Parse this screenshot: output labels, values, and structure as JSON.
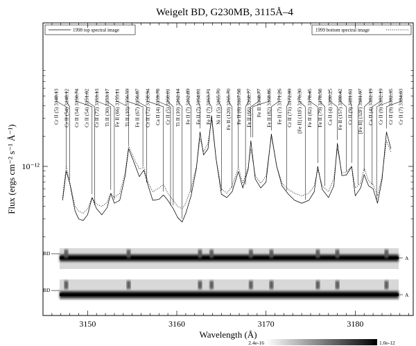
{
  "chart_data": {
    "type": "line",
    "title": "Weigelt BD, G230MB, 3115Å–4",
    "xlabel": "Wavelength (Å)",
    "ylabel": "Flux (ergs cm⁻² s⁻¹ Å⁻¹)",
    "xlim": [
      3145.0,
      3186.5
    ],
    "y_scale": "log",
    "y_tick": {
      "value": 1e-12,
      "label": "10⁻¹²"
    },
    "x_ticks": [
      3150,
      3160,
      3170,
      3180
    ],
    "legend": [
      {
        "label": "1998 top spectral image",
        "style": "solid",
        "position": "top-left"
      },
      {
        "label": "1999 bottom spectral image",
        "style": "dotted",
        "position": "top-right"
      }
    ],
    "series": [
      {
        "name": "1998 top spectral image",
        "style": "solid",
        "points": [
          [
            3147.2,
            4.6e-13
          ],
          [
            3147.6,
            9e-13
          ],
          [
            3148.0,
            6.8e-13
          ],
          [
            3148.6,
            3.6e-13
          ],
          [
            3149.0,
            3e-13
          ],
          [
            3149.5,
            2.9e-13
          ],
          [
            3150.0,
            3.3e-13
          ],
          [
            3150.5,
            4.9e-13
          ],
          [
            3151.0,
            3.8e-13
          ],
          [
            3151.6,
            3.3e-13
          ],
          [
            3152.2,
            3.9e-13
          ],
          [
            3152.6,
            5.4e-13
          ],
          [
            3153.0,
            4.3e-13
          ],
          [
            3153.6,
            4.6e-13
          ],
          [
            3154.2,
            8e-13
          ],
          [
            3154.6,
            1.5e-12
          ],
          [
            3155.2,
            1.1e-12
          ],
          [
            3155.8,
            7.9e-13
          ],
          [
            3156.3,
            9.2e-13
          ],
          [
            3156.8,
            6.4e-13
          ],
          [
            3157.3,
            4.6e-13
          ],
          [
            3158.0,
            4.7e-13
          ],
          [
            3158.5,
            5.2e-13
          ],
          [
            3159.0,
            4.6e-13
          ],
          [
            3159.6,
            3.8e-13
          ],
          [
            3160.1,
            3.1e-13
          ],
          [
            3160.6,
            2.8e-13
          ],
          [
            3161.0,
            3.4e-13
          ],
          [
            3161.6,
            5.1e-13
          ],
          [
            3162.2,
            9.6e-13
          ],
          [
            3162.6,
            2.2e-12
          ],
          [
            3163.0,
            1.3e-12
          ],
          [
            3163.5,
            1.5e-12
          ],
          [
            3163.9,
            3.2e-12
          ],
          [
            3164.4,
            1.2e-12
          ],
          [
            3165.0,
            5.3e-13
          ],
          [
            3165.6,
            4.9e-13
          ],
          [
            3166.2,
            5.6e-13
          ],
          [
            3166.9,
            8.9e-13
          ],
          [
            3167.4,
            6.1e-13
          ],
          [
            3168.0,
            9.4e-13
          ],
          [
            3168.3,
            1.8e-12
          ],
          [
            3168.8,
            7.5e-13
          ],
          [
            3169.4,
            6.1e-13
          ],
          [
            3170.0,
            7e-13
          ],
          [
            3170.6,
            2.1e-12
          ],
          [
            3171.2,
            1e-12
          ],
          [
            3171.8,
            6.4e-13
          ],
          [
            3172.5,
            5.3e-13
          ],
          [
            3173.2,
            4.6e-13
          ],
          [
            3174.0,
            4.3e-13
          ],
          [
            3174.8,
            4.6e-13
          ],
          [
            3175.4,
            5.6e-13
          ],
          [
            3175.8,
            1e-12
          ],
          [
            3176.3,
            5.9e-13
          ],
          [
            3177.0,
            4.9e-13
          ],
          [
            3177.6,
            6.4e-13
          ],
          [
            3178.0,
            1.7e-12
          ],
          [
            3178.5,
            8.1e-13
          ],
          [
            3179.0,
            8.2e-13
          ],
          [
            3179.6,
            1e-12
          ],
          [
            3180.0,
            5.1e-13
          ],
          [
            3180.6,
            6.1e-13
          ],
          [
            3181.0,
            8.3e-13
          ],
          [
            3181.5,
            6.4e-13
          ],
          [
            3182.0,
            6e-13
          ],
          [
            3182.5,
            4.3e-13
          ],
          [
            3183.0,
            7.4e-13
          ],
          [
            3183.5,
            2.2e-12
          ],
          [
            3184.0,
            1.5e-12
          ]
        ]
      },
      {
        "name": "1999 bottom spectral image",
        "style": "dotted",
        "points": [
          [
            3147.2,
            4.9e-13
          ],
          [
            3147.6,
            1e-12
          ],
          [
            3148.0,
            7e-13
          ],
          [
            3148.6,
            4e-13
          ],
          [
            3149.0,
            3.6e-13
          ],
          [
            3149.5,
            3.4e-13
          ],
          [
            3150.0,
            3.8e-13
          ],
          [
            3150.5,
            4.9e-13
          ],
          [
            3151.0,
            4.2e-13
          ],
          [
            3151.6,
            4e-13
          ],
          [
            3152.2,
            4.4e-13
          ],
          [
            3152.6,
            5.4e-13
          ],
          [
            3153.0,
            4.9e-13
          ],
          [
            3153.6,
            5.4e-13
          ],
          [
            3154.2,
            8.6e-13
          ],
          [
            3154.6,
            1.6e-12
          ],
          [
            3155.2,
            1.2e-12
          ],
          [
            3155.8,
            9.4e-13
          ],
          [
            3156.3,
            9.8e-13
          ],
          [
            3156.8,
            6.9e-13
          ],
          [
            3157.3,
            5.6e-13
          ],
          [
            3158.0,
            6.1e-13
          ],
          [
            3158.5,
            6.6e-13
          ],
          [
            3159.0,
            5.4e-13
          ],
          [
            3159.6,
            4.6e-13
          ],
          [
            3160.1,
            4e-13
          ],
          [
            3160.6,
            3.8e-13
          ],
          [
            3161.0,
            4.3e-13
          ],
          [
            3161.6,
            6.1e-13
          ],
          [
            3162.2,
            1e-12
          ],
          [
            3162.6,
            1.9e-12
          ],
          [
            3163.0,
            1.4e-12
          ],
          [
            3163.5,
            1.7e-12
          ],
          [
            3163.9,
            2.9e-12
          ],
          [
            3164.4,
            1.2e-12
          ],
          [
            3165.0,
            6e-13
          ],
          [
            3165.6,
            5.4e-13
          ],
          [
            3166.2,
            6.4e-13
          ],
          [
            3166.9,
            9.8e-13
          ],
          [
            3167.4,
            6.8e-13
          ],
          [
            3168.0,
            9.8e-13
          ],
          [
            3168.3,
            1.5e-12
          ],
          [
            3168.8,
            8.1e-13
          ],
          [
            3169.4,
            6.8e-13
          ],
          [
            3170.0,
            8e-13
          ],
          [
            3170.6,
            2e-12
          ],
          [
            3171.2,
            1e-12
          ],
          [
            3171.8,
            6.8e-13
          ],
          [
            3172.5,
            5.9e-13
          ],
          [
            3173.2,
            5.4e-13
          ],
          [
            3174.0,
            5.1e-13
          ],
          [
            3174.8,
            5.4e-13
          ],
          [
            3175.4,
            6.4e-13
          ],
          [
            3175.8,
            9.3e-13
          ],
          [
            3176.3,
            6.4e-13
          ],
          [
            3177.0,
            5.6e-13
          ],
          [
            3177.6,
            7.6e-13
          ],
          [
            3178.0,
            1.5e-12
          ],
          [
            3178.5,
            8.6e-13
          ],
          [
            3179.0,
            8.8e-13
          ],
          [
            3179.6,
            1e-12
          ],
          [
            3180.0,
            6.1e-13
          ],
          [
            3180.6,
            6.8e-13
          ],
          [
            3181.0,
            9.6e-13
          ],
          [
            3181.5,
            7.2e-13
          ],
          [
            3182.0,
            6.6e-13
          ],
          [
            3182.5,
            5.1e-13
          ],
          [
            3183.0,
            8e-13
          ],
          [
            3183.5,
            1.8e-12
          ],
          [
            3184.0,
            1.4e-12
          ]
        ]
      }
    ],
    "line_ids": [
      {
        "label": "Cr II (5) 3148.13",
        "wavelength": 3147.6
      },
      {
        "label": "Cr II (54) 3148.12",
        "wavelength": 3148.0
      },
      {
        "label": "Cr II (54) 3150.74",
        "wavelength": 3150.5
      },
      {
        "label": "Cr II (54) 3151.02",
        "wavelength": 3150.8
      },
      {
        "label": "Cr II (72) 3153.13",
        "wavelength": 3152.6
      },
      {
        "label": "Ti II (30) 3153.17",
        "wavelength": 3153.0
      },
      {
        "label": "Fe II (66) 3155.11",
        "wavelength": 3154.6
      },
      {
        "label": "Ti II (10) 3156.59",
        "wavelength": 3156.2
      },
      {
        "label": "Fe II (67) 3156.87",
        "wavelength": 3156.6
      },
      {
        "label": "Cr II (72) 3158.94",
        "wavelength": 3158.5
      },
      {
        "label": "Ca II (4) 3159.78",
        "wavelength": 3159.3
      },
      {
        "label": "Cr II (5) 3160.01",
        "wavelength": 3159.6
      },
      {
        "label": "Ti II (10) 3162.14",
        "wavelength": 3160.6
      },
      {
        "label": "Fe II (7) 3162.89",
        "wavelength": 3161.6
      },
      {
        "label": "Fe II (7) 3164.01",
        "wavelength": 3162.6
      },
      {
        "label": "Fe II (7) 3163.71",
        "wavelength": 3163.9
      },
      {
        "label": "Ni II (5) 3165.70",
        "wavelength": 3165.0
      },
      {
        "label": "Fe II (120) 3165.70",
        "wavelength": 3166.2
      },
      {
        "label": "Fe II (6) 3167.58",
        "wavelength": 3166.9
      },
      {
        "label": "Fe II (66) 3168.77",
        "wavelength": 3167.7
      },
      {
        "label": "Fe II 3168.77",
        "wavelength": 3168.3
      },
      {
        "label": "Fe II (82) 3168.86",
        "wavelength": 3168.5
      },
      {
        "label": "Fe II (7) 3171.26",
        "wavelength": 3170.6
      },
      {
        "label": "Cr II (71) 3172.99",
        "wavelength": 3172.3
      },
      {
        "label": "[Fe II] (11F) 3176.30",
        "wavelength": 3174.4
      },
      {
        "label": "Fe II (82) 3178.45",
        "wavelength": 3175.8
      },
      {
        "label": "Fe II (79) 3178.58",
        "wavelength": 3176.6
      },
      {
        "label": "Ca II (4) 3180.25",
        "wavelength": 3178.0
      },
      {
        "label": "Fe II (157) 3180.42",
        "wavelength": 3179.0
      },
      {
        "label": "Cr II (9) 3181.61",
        "wavelength": 3179.6
      },
      {
        "label": "[Fe II] (32F) 3181.97",
        "wavelength": 3180.3
      },
      {
        "label": "Ca II (4) 3182.19",
        "wavelength": 3181.0
      },
      {
        "label": "Cr II (9) 3182.19",
        "wavelength": 3181.9
      },
      {
        "label": "Cr II (9) 3182.35",
        "wavelength": 3182.4
      },
      {
        "label": "Cr II (7) 3184.03",
        "wavelength": 3183.5
      }
    ],
    "spectral_images": [
      {
        "left_label": "BD",
        "right_label": "A",
        "row": "top"
      },
      {
        "left_label": "BD",
        "right_label": "A",
        "row": "bottom"
      }
    ],
    "colorbar": {
      "min_label": "2.4e-16",
      "max_label": "1.0e-12"
    }
  }
}
